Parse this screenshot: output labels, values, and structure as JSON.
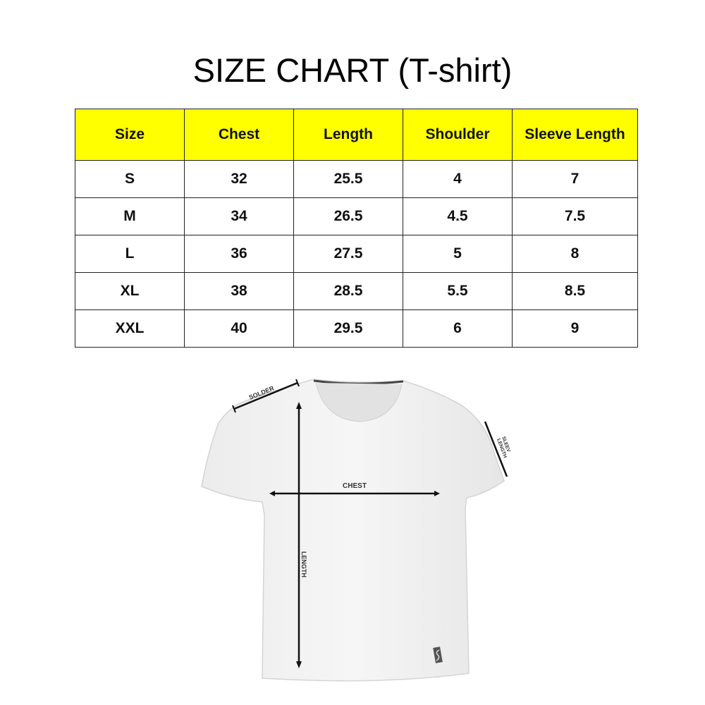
{
  "title": "SIZE CHART (T-shirt)",
  "table": {
    "headers": [
      "Size",
      "Chest",
      "Length",
      "Shoulder",
      "Sleeve Length"
    ],
    "rows": [
      [
        "S",
        "32",
        "25.5",
        "4",
        "7"
      ],
      [
        "M",
        "34",
        "26.5",
        "4.5",
        "7.5"
      ],
      [
        "L",
        "36",
        "27.5",
        "5",
        "8"
      ],
      [
        "XL",
        "38",
        "28.5",
        "5.5",
        "8.5"
      ],
      [
        "XXL",
        "40",
        "29.5",
        "6",
        "9"
      ]
    ],
    "header_color": "#ffff00"
  },
  "diagram": {
    "shoulder_label": "SOLDER",
    "sleeve_label_1": "SLEEV",
    "sleeve_label_2": "LENGTH",
    "chest_label": "CHEST",
    "length_label": "LENGTH"
  }
}
